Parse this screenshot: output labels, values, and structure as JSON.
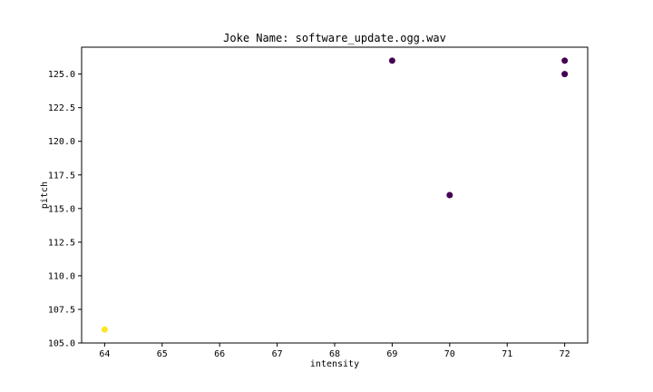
{
  "chart_data": {
    "type": "scatter",
    "title": "Joke Name: software_update.ogg.wav",
    "xlabel": "intensity",
    "ylabel": "pitch",
    "xlim": [
      63.6,
      72.4
    ],
    "ylim": [
      105.0,
      127.0
    ],
    "xticks": [
      64,
      65,
      66,
      67,
      68,
      69,
      70,
      71,
      72
    ],
    "yticks": [
      105.0,
      107.5,
      110.0,
      112.5,
      115.0,
      117.5,
      120.0,
      122.5,
      125.0
    ],
    "xtick_labels": [
      "64",
      "65",
      "66",
      "67",
      "68",
      "69",
      "70",
      "71",
      "72"
    ],
    "ytick_labels": [
      "105.0",
      "107.5",
      "110.0",
      "112.5",
      "115.0",
      "117.5",
      "120.0",
      "122.5",
      "125.0"
    ],
    "grid": false,
    "points": [
      {
        "x": 64,
        "y": 106,
        "color": "#fde725"
      },
      {
        "x": 69,
        "y": 126,
        "color": "#440154"
      },
      {
        "x": 70,
        "y": 116,
        "color": "#440154"
      },
      {
        "x": 72,
        "y": 126,
        "color": "#440154"
      },
      {
        "x": 72,
        "y": 125,
        "color": "#440154"
      }
    ]
  }
}
